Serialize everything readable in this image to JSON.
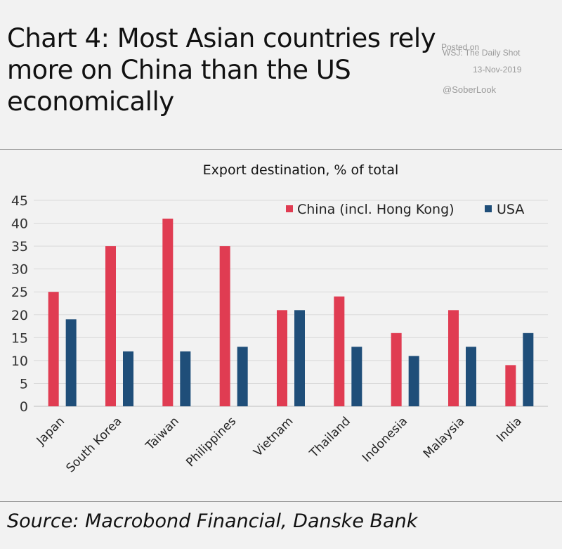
{
  "header": {
    "title": "Chart 4: Most Asian countries rely more on China than the US economically"
  },
  "watermark": {
    "line1": "Posted on",
    "line2": "WSJ: The Daily Shot",
    "date": "13-Nov-2019",
    "handle": "@SoberLook"
  },
  "footer": {
    "source": "Source: Macrobond Financial, Danske Bank"
  },
  "colors": {
    "china": "#e03c52",
    "usa": "#1f4e79",
    "grid": "#d9d9d9",
    "text": "#111111"
  },
  "chart_data": {
    "type": "bar",
    "title": "Export destination, % of total",
    "xlabel": "",
    "ylabel": "",
    "ylim": [
      0,
      45
    ],
    "yticks": [
      0,
      5,
      10,
      15,
      20,
      25,
      30,
      35,
      40,
      45
    ],
    "grid": true,
    "legend_position": "top-right",
    "categories": [
      "Japan",
      "South Korea",
      "Taiwan",
      "Philippines",
      "Vietnam",
      "Thailand",
      "Indonesia",
      "Malaysia",
      "India"
    ],
    "series": [
      {
        "name": "China (incl. Hong Kong)",
        "color": "#e03c52",
        "values": [
          25,
          35,
          41,
          35,
          21,
          24,
          16,
          21,
          9
        ]
      },
      {
        "name": "USA",
        "color": "#1f4e79",
        "values": [
          19,
          12,
          12,
          13,
          21,
          13,
          11,
          13,
          16
        ]
      }
    ]
  }
}
